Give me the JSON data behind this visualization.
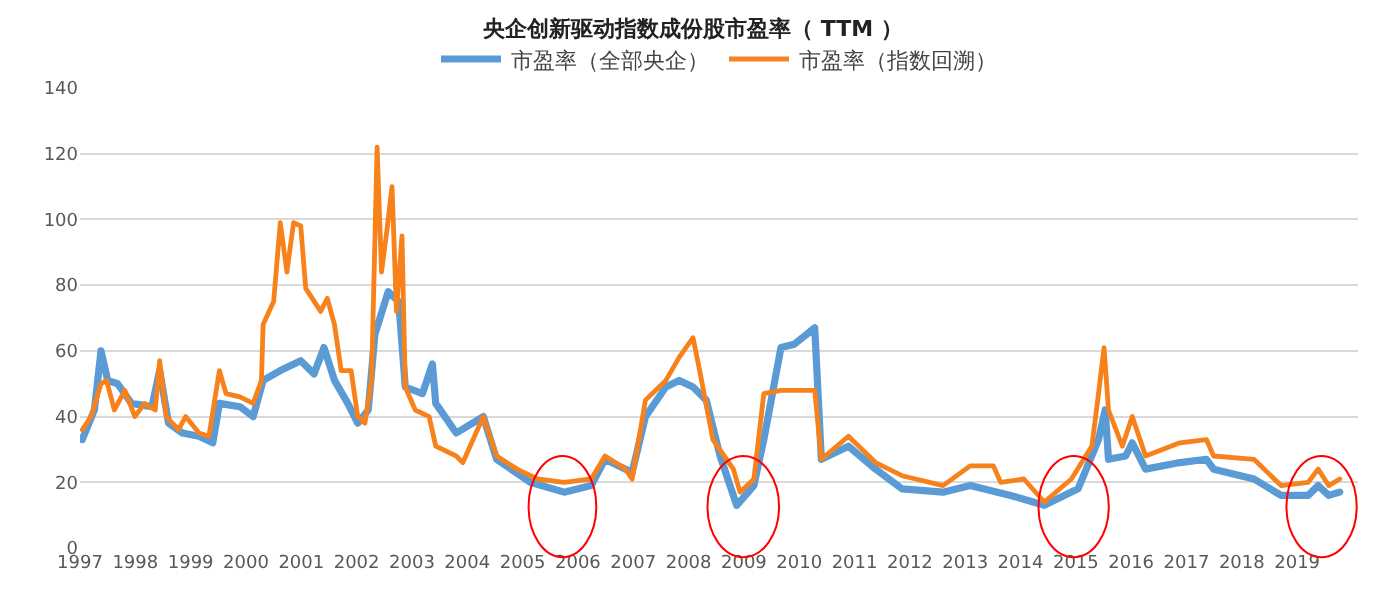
{
  "chart_data": {
    "type": "line",
    "title": "央企创新驱动指数成份股市盈率（ TTM ）",
    "xlim": [
      1997,
      2020.1
    ],
    "xticks": [
      1997,
      1998,
      1999,
      2000,
      2001,
      2002,
      2003,
      2004,
      2005,
      2006,
      2007,
      2008,
      2009,
      2010,
      2011,
      2012,
      2013,
      2014,
      2015,
      2016,
      2017,
      2018,
      2019
    ],
    "ylim": [
      0,
      140
    ],
    "yticks": [
      0,
      20,
      40,
      60,
      80,
      100,
      120,
      140
    ],
    "grid": "y",
    "legend": "top",
    "marker": "none",
    "line_style": "solid",
    "series": [
      {
        "name": "市盈率（全部央企）",
        "color": "#5b9bd5",
        "x": [
          1997.04,
          1997.26,
          1997.38,
          1997.5,
          1997.68,
          1997.93,
          1998.3,
          1998.44,
          1998.6,
          1998.85,
          1999.15,
          1999.4,
          1999.52,
          1999.89,
          2000.13,
          2000.31,
          2000.62,
          2000.99,
          2001.23,
          2001.41,
          2001.6,
          2001.84,
          2002.02,
          2002.21,
          2002.33,
          2002.57,
          2002.76,
          2002.88,
          2003.19,
          2003.37,
          2003.43,
          2003.8,
          2004.29,
          2004.53,
          2005.14,
          2005.75,
          2006.24,
          2006.49,
          2006.98,
          2007.22,
          2007.59,
          2007.83,
          2008.08,
          2008.32,
          2008.57,
          2008.87,
          2009.18,
          2009.36,
          2009.67,
          2009.91,
          2010.28,
          2010.4,
          2010.89,
          2011.38,
          2011.86,
          2012.6,
          2013.09,
          2013.82,
          2014.43,
          2015.04,
          2015.41,
          2015.53,
          2015.59,
          2015.9,
          2016.02,
          2016.26,
          2016.88,
          2017.36,
          2017.49,
          2018.22,
          2018.71,
          2019.2,
          2019.38,
          2019.57,
          2019.77
        ],
        "values": [
          33,
          42,
          60,
          51,
          50,
          44,
          43,
          54,
          38,
          35,
          34,
          32,
          44,
          43,
          40,
          51,
          54,
          57,
          53,
          61,
          51,
          44,
          38,
          42,
          65,
          78,
          75,
          49,
          47,
          56,
          44,
          35,
          40,
          27,
          20,
          17,
          19,
          27,
          23,
          40,
          49,
          51,
          49,
          45,
          28,
          13,
          19,
          33,
          61,
          62,
          67,
          27,
          31,
          24,
          18,
          17,
          19,
          16,
          13,
          18,
          33,
          42,
          27,
          28,
          32,
          24,
          26,
          27,
          24,
          21,
          16,
          16,
          19,
          16,
          17
        ]
      },
      {
        "name": "市盈率（指数回溯）",
        "color": "#f7821b",
        "x": [
          1997.04,
          1997.2,
          1997.38,
          1997.48,
          1997.62,
          1997.81,
          1997.99,
          1998.17,
          1998.36,
          1998.44,
          1998.56,
          1998.78,
          1998.91,
          1999.15,
          1999.33,
          1999.52,
          1999.64,
          1999.89,
          2000.13,
          2000.28,
          2000.31,
          2000.5,
          2000.62,
          2000.74,
          2000.86,
          2000.99,
          2001.08,
          2001.35,
          2001.47,
          2001.6,
          2001.72,
          2001.9,
          2002.02,
          2002.15,
          2002.27,
          2002.37,
          2002.45,
          2002.55,
          2002.64,
          2002.72,
          2002.82,
          2002.88,
          2003.06,
          2003.31,
          2003.43,
          2003.8,
          2003.92,
          2004.29,
          2004.53,
          2004.9,
          2005.27,
          2005.75,
          2006.24,
          2006.49,
          2006.86,
          2006.98,
          2007.22,
          2007.59,
          2007.83,
          2008.08,
          2008.2,
          2008.44,
          2008.81,
          2008.93,
          2009.18,
          2009.36,
          2009.67,
          2010.28,
          2010.4,
          2010.89,
          2011.38,
          2011.86,
          2012.6,
          2013.09,
          2013.51,
          2013.64,
          2014.06,
          2014.43,
          2014.92,
          2015.29,
          2015.41,
          2015.51,
          2015.59,
          2015.84,
          2016.02,
          2016.26,
          2016.88,
          2017.36,
          2017.49,
          2018.22,
          2018.71,
          2019.2,
          2019.38,
          2019.57,
          2019.77
        ],
        "values": [
          36,
          40,
          50,
          51,
          42,
          48,
          40,
          44,
          42,
          57,
          40,
          36,
          40,
          35,
          34,
          54,
          47,
          46,
          44,
          51,
          68,
          75,
          99,
          84,
          99,
          98,
          79,
          72,
          76,
          68,
          54,
          54,
          40,
          38,
          51,
          122,
          84,
          97,
          110,
          72,
          95,
          49,
          42,
          40,
          31,
          28,
          26,
          40,
          28,
          24,
          21,
          20,
          21,
          28,
          24,
          21,
          45,
          51,
          58,
          64,
          54,
          33,
          24,
          17,
          21,
          47,
          48,
          48,
          27,
          34,
          26,
          22,
          19,
          25,
          25,
          20,
          21,
          14,
          21,
          31,
          47,
          61,
          42,
          31,
          40,
          28,
          32,
          33,
          28,
          27,
          19,
          20,
          24,
          19,
          21
        ]
      }
    ]
  }
}
